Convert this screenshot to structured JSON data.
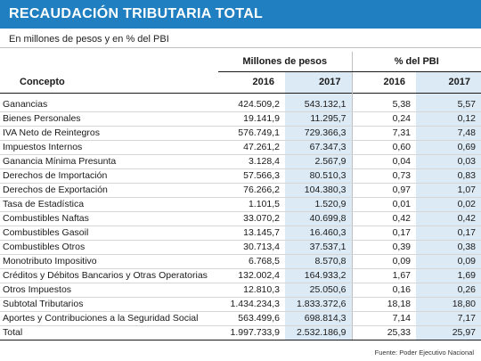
{
  "title": "RECAUDACIÓN TRIBUTARIA TOTAL",
  "subtitle": "En millones de pesos y en % del PBI",
  "group_headers": {
    "millones": "Millones de pesos",
    "pbi": "% del PBI"
  },
  "column_headers": {
    "concepto": "Concepto",
    "m2016": "2016",
    "m2017": "2017",
    "p2016": "2016",
    "p2017": "2017"
  },
  "rows": [
    {
      "concepto": "Ganancias",
      "m2016": "424.509,2",
      "m2017": "543.132,1",
      "p2016": "5,38",
      "p2017": "5,57"
    },
    {
      "concepto": "Bienes Personales",
      "m2016": "19.141,9",
      "m2017": "11.295,7",
      "p2016": "0,24",
      "p2017": "0,12"
    },
    {
      "concepto": "IVA Neto de Reintegros",
      "m2016": "576.749,1",
      "m2017": "729.366,3",
      "p2016": "7,31",
      "p2017": "7,48"
    },
    {
      "concepto": "Impuestos Internos",
      "m2016": "47.261,2",
      "m2017": "67.347,3",
      "p2016": "0,60",
      "p2017": "0,69"
    },
    {
      "concepto": "Ganancia Mínima Presunta",
      "m2016": "3.128,4",
      "m2017": "2.567,9",
      "p2016": "0,04",
      "p2017": "0,03"
    },
    {
      "concepto": "Derechos de Importación",
      "m2016": "57.566,3",
      "m2017": "80.510,3",
      "p2016": "0,73",
      "p2017": "0,83"
    },
    {
      "concepto": "Derechos de Exportación",
      "m2016": "76.266,2",
      "m2017": "104.380,3",
      "p2016": "0,97",
      "p2017": "1,07"
    },
    {
      "concepto": "Tasa de Estadística",
      "m2016": "1.101,5",
      "m2017": "1.520,9",
      "p2016": "0,01",
      "p2017": "0,02"
    },
    {
      "concepto": "Combustibles Naftas",
      "m2016": "33.070,2",
      "m2017": "40.699,8",
      "p2016": "0,42",
      "p2017": "0,42"
    },
    {
      "concepto": "Combustibles Gasoil",
      "m2016": "13.145,7",
      "m2017": "16.460,3",
      "p2016": "0,17",
      "p2017": "0,17"
    },
    {
      "concepto": "Combustibles Otros",
      "m2016": "30.713,4",
      "m2017": "37.537,1",
      "p2016": "0,39",
      "p2017": "0,38"
    },
    {
      "concepto": "Monotributo Impositivo",
      "m2016": "6.768,5",
      "m2017": "8.570,8",
      "p2016": "0,09",
      "p2017": "0,09"
    },
    {
      "concepto": "Créditos y Débitos Bancarios y Otras Operatorias",
      "m2016": "132.002,4",
      "m2017": "164.933,2",
      "p2016": "1,67",
      "p2017": "1,69"
    },
    {
      "concepto": "Otros Impuestos",
      "m2016": "12.810,3",
      "m2017": "25.050,6",
      "p2016": "0,16",
      "p2017": "0,26"
    },
    {
      "concepto": "Subtotal Tributarios",
      "m2016": "1.434.234,3",
      "m2017": "1.833.372,6",
      "p2016": "18,18",
      "p2017": "18,80"
    },
    {
      "concepto": "Aportes y Contribuciones a la Seguridad Social",
      "m2016": "563.499,6",
      "m2017": "698.814,3",
      "p2016": "7,14",
      "p2017": "7,17"
    }
  ],
  "total": {
    "concepto": "Total",
    "m2016": "1.997.733,9",
    "m2017": "2.532.186,9",
    "p2016": "25,33",
    "p2017": "25,97"
  },
  "source": "Fuente: Poder Ejecutivo Nacional",
  "colors": {
    "title_bg": "#1f7fc0",
    "shaded_column": "#dceaf5"
  }
}
